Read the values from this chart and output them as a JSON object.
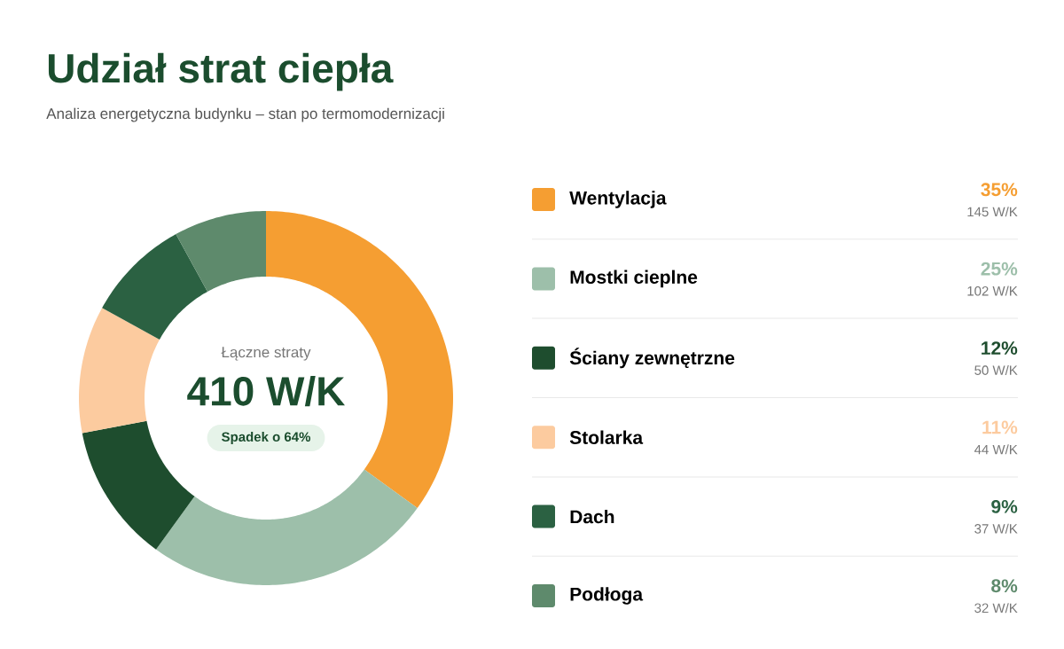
{
  "chart_data": {
    "type": "donut",
    "title": "Udział strat ciepła",
    "subtitle": "Analiza energetyczna budynku – stan po termomodernizacji",
    "categories": [
      "Wentylacja",
      "Mostki cieplne",
      "Ściany zewnętrzne",
      "Stolarka",
      "Dach",
      "Podłoga"
    ],
    "values": [
      35,
      25,
      12,
      11,
      9,
      8
    ],
    "colors": [
      "#f59e32",
      "#9dbfaa",
      "#1e4d2e",
      "#fccb9f",
      "#2b6142",
      "#5e8a6c"
    ],
    "legend": "right",
    "annotations": [
      "Łączne straty",
      "410 W/K",
      "Spadek o 64%",
      {
        "text": "35%",
        "x": "Wentylacja"
      },
      {
        "text": "25%",
        "x": "Mostki cieplne"
      },
      {
        "text": "12%",
        "x": "Ściany zewnętrzne"
      },
      {
        "text": "11%",
        "x": "Stolarka"
      },
      {
        "text": "9%",
        "x": "Dach"
      },
      {
        "text": "8%",
        "x": "Podłoga"
      },
      {
        "text": "145 W/K",
        "x": "Wentylacja"
      },
      {
        "text": "102 W/K",
        "x": "Mostki cieplne"
      },
      {
        "text": "50 W/K",
        "x": "Ściany zewnętrzne"
      },
      {
        "text": "44 W/K",
        "x": "Stolarka"
      },
      {
        "text": "37 W/K",
        "x": "Dach"
      },
      {
        "text": "32 W/K",
        "x": "Podłoga"
      }
    ]
  }
}
